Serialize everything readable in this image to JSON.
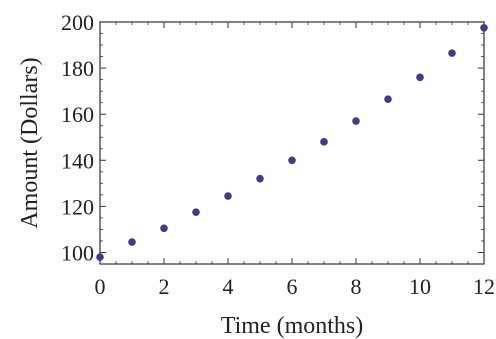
{
  "chart_data": {
    "type": "scatter",
    "title": "",
    "xlabel": "Time (months)",
    "ylabel": "Amount (Dollars)",
    "xlim": [
      0,
      12
    ],
    "ylim": [
      95,
      200
    ],
    "x_ticks": [
      "0",
      "2",
      "4",
      "6",
      "8",
      "10",
      "12"
    ],
    "y_ticks": [
      "100",
      "120",
      "140",
      "160",
      "180",
      "200"
    ],
    "grid": false,
    "legend": "none",
    "point_color": "#3d3d8c",
    "series": [
      {
        "x": [
          0,
          1,
          2,
          3,
          4,
          5,
          6,
          7,
          8,
          9,
          10,
          11,
          12
        ],
        "y": [
          98,
          104.5,
          110.5,
          117.5,
          124.5,
          132,
          140,
          148,
          157,
          166.5,
          176,
          186.5,
          197.5
        ]
      }
    ]
  }
}
